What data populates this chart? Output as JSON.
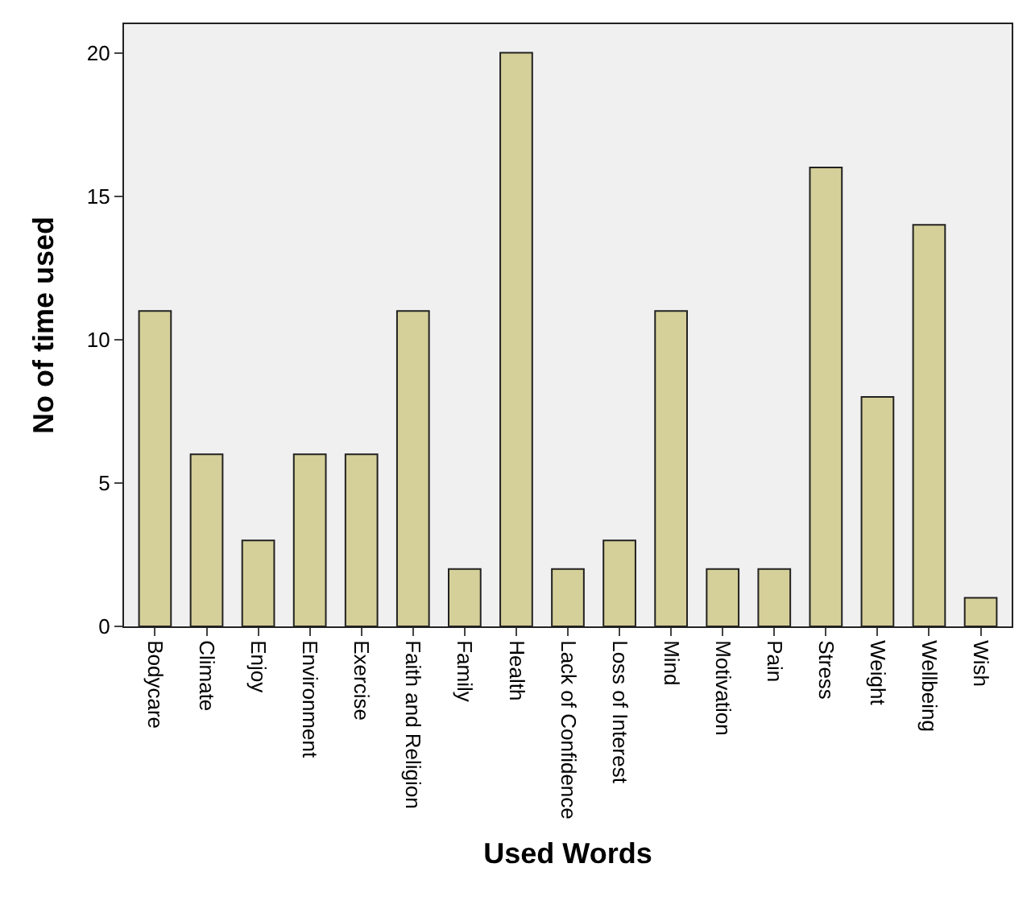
{
  "chart_data": {
    "type": "bar",
    "xlabel": "Used Words",
    "ylabel": "No of time used",
    "categories": [
      "Bodycare",
      "Climate",
      "Enjoy",
      "Environment",
      "Exercise",
      "Faith and Religion",
      "Family",
      "Health",
      "Lack of Confidence",
      "Loss of Interest",
      "Mind",
      "Motivation",
      "Pain",
      "Stress",
      "Weight",
      "Wellbeing",
      "Wish"
    ],
    "values": [
      11,
      6,
      3,
      6,
      6,
      11,
      2,
      20,
      2,
      3,
      11,
      2,
      2,
      16,
      8,
      14,
      1
    ],
    "color": "#d5cf99",
    "ylim": [
      0,
      21
    ],
    "yticks": [
      0,
      5,
      10,
      15,
      20
    ]
  }
}
